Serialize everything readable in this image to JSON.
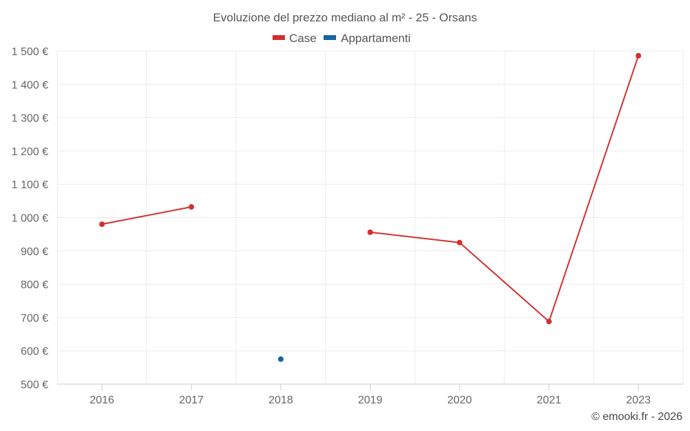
{
  "chart_data": {
    "type": "line",
    "title": "Evoluzione del prezzo mediano al m² - 25 - Orsans",
    "categories": [
      "2016",
      "2017",
      "2018",
      "2019",
      "2020",
      "2021",
      "2023"
    ],
    "y_tick_labels": [
      "500 €",
      "600 €",
      "700 €",
      "800 €",
      "900 €",
      "1 000 €",
      "1 100 €",
      "1 200 €",
      "1 300 €",
      "1 400 €",
      "1 500 €"
    ],
    "y_ticks": [
      500,
      600,
      700,
      800,
      900,
      1000,
      1100,
      1200,
      1300,
      1400,
      1500
    ],
    "ylim": [
      500,
      1500
    ],
    "series": [
      {
        "name": "Case",
        "color": "#d32f2f",
        "values": [
          980,
          1032,
          null,
          956,
          925,
          688,
          1486
        ]
      },
      {
        "name": "Appartamenti",
        "color": "#1565a0",
        "values": [
          null,
          null,
          575,
          null,
          null,
          null,
          null
        ]
      }
    ],
    "legend_position": "top-center",
    "credit": "© emooki.fr - 2026"
  }
}
